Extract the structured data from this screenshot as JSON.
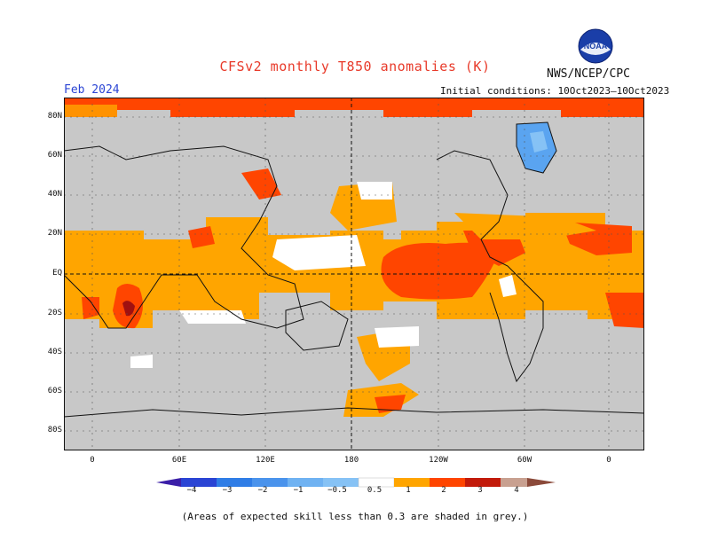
{
  "title": "CFSv2 monthly T850 anomalies (K)",
  "agency": "NWS/NCEP/CPC",
  "logo_text": "NOAA",
  "month": "Feb 2024",
  "initial_conditions": "Initial conditions: 10Oct2023–10Oct2023",
  "lat_labels": [
    "80N",
    "60N",
    "40N",
    "20N",
    "EQ",
    "20S",
    "40S",
    "60S",
    "80S"
  ],
  "lon_labels": [
    "0",
    "60E",
    "120E",
    "180",
    "120W",
    "60W",
    "0"
  ],
  "colorbar": {
    "labels": [
      "−4",
      "−3",
      "−2",
      "−1",
      "−0.5",
      "0.5",
      "1",
      "2",
      "3",
      "4"
    ],
    "colors": [
      "#3b1fa8",
      "#2a44d4",
      "#2f7de6",
      "#5aa4f0",
      "#86c2f5",
      "#ffffff",
      "#ffa500",
      "#ff4500",
      "#c21a0a",
      "#8b0000",
      "#c8a090",
      "#8b4a3a"
    ]
  },
  "colors": {
    "grey_mask": "#c8c8c8",
    "orange": "#ffa500",
    "red_orange": "#ff4500",
    "dark_red": "#a01010",
    "blue": "#5aa4f0"
  },
  "footnote": "(Areas of expected skill less than 0.3 are shaded in grey.)"
}
